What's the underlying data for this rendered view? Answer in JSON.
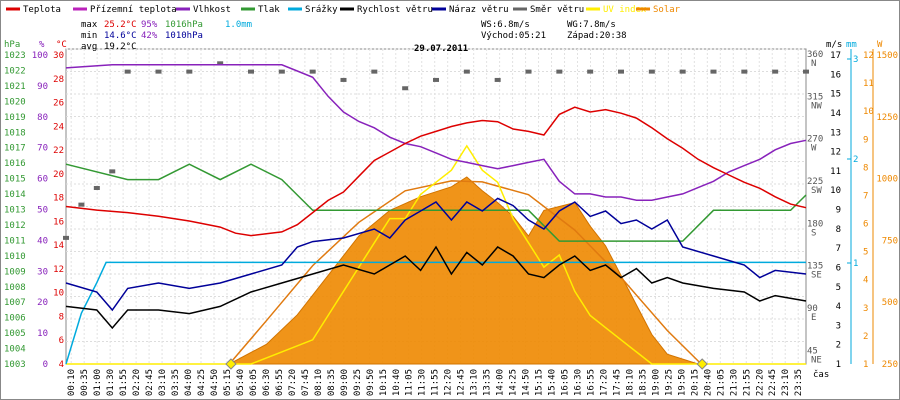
{
  "chart_data": {
    "type": "line",
    "title": "29.07.2011",
    "xlabel": "čas",
    "x_ticks": [
      "00:10",
      "00:35",
      "01:00",
      "01:30",
      "01:55",
      "02:20",
      "02:45",
      "03:10",
      "03:35",
      "04:00",
      "04:25",
      "04:50",
      "05:15",
      "05:40",
      "06:05",
      "06:30",
      "06:55",
      "07:20",
      "07:45",
      "08:10",
      "08:35",
      "09:00",
      "09:25",
      "09:50",
      "10:15",
      "10:40",
      "11:05",
      "11:30",
      "11:55",
      "12:20",
      "12:45",
      "13:10",
      "13:35",
      "14:00",
      "14:25",
      "14:50",
      "15:15",
      "15:40",
      "16:05",
      "16:30",
      "16:55",
      "17:20",
      "17:45",
      "18:10",
      "18:35",
      "19:00",
      "19:25",
      "19:50",
      "20:15",
      "20:40",
      "21:05",
      "21:30",
      "21:55",
      "22:20",
      "22:45",
      "23:10",
      "23:35"
    ],
    "legend": [
      {
        "label": "Teplota",
        "color": "#dd0000"
      },
      {
        "label": "Přízemní teplota",
        "color": "#bb22bb"
      },
      {
        "label": "Vlhkost",
        "color": "#8822bb"
      },
      {
        "label": "Tlak",
        "color": "#339933"
      },
      {
        "label": "Srážky",
        "color": "#00aadd"
      },
      {
        "label": "Rychlost větru",
        "color": "#000000"
      },
      {
        "label": "Náraz větru",
        "color": "#000099"
      },
      {
        "label": "Směr větru",
        "color": "#666666"
      },
      {
        "label": "UV index",
        "color": "#ffee00"
      },
      {
        "label": "Solar",
        "color": "#ee8800"
      }
    ],
    "stats": {
      "max_label": "max",
      "max_temp": "25.2°C",
      "max_hum": "95%",
      "max_press": "1016hPa",
      "rain": "1.0mm",
      "min_label": "min",
      "min_temp": "14.6°C",
      "min_hum": "42%",
      "min_press": "1010hPa",
      "avg_label": "avg",
      "avg_temp": "19.2°C",
      "ws": "WS:6.8m/s",
      "wg": "WG:7.8m/s",
      "sunrise": "Východ:05:21",
      "sunset": "Západ:20:38"
    },
    "axes": {
      "hpa": {
        "unit": "hPa",
        "ticks": [
          "1023",
          "1022",
          "1021",
          "1020",
          "1019",
          "1018",
          "1017",
          "1016",
          "1015",
          "1014",
          "1013",
          "1012",
          "1011",
          "1010",
          "1009",
          "1008",
          "1007",
          "1006",
          "1005",
          "1004",
          "1003"
        ]
      },
      "pct": {
        "unit": "%",
        "ticks": [
          "100",
          "90",
          "80",
          "70",
          "60",
          "50",
          "40",
          "30",
          "20",
          "10",
          "0"
        ]
      },
      "degc": {
        "unit": "°C",
        "ticks": [
          "30",
          "28",
          "26",
          "24",
          "22",
          "20",
          "18",
          "16",
          "14",
          "12",
          "10",
          "8",
          "6",
          "4"
        ]
      },
      "dir": {
        "ticks": [
          "360 N",
          "315 NW",
          "270 W",
          "225 SW",
          "180 S",
          "135 SE",
          "90 E",
          "45 NE"
        ]
      },
      "ms": {
        "unit": "m/s",
        "ticks": [
          "17",
          "16",
          "15",
          "14",
          "13",
          "12",
          "11",
          "10",
          "9",
          "8",
          "7",
          "6",
          "5",
          "4",
          "3",
          "2",
          "1"
        ]
      },
      "mm": {
        "unit": "mm",
        "ticks": [
          "3",
          "2",
          "1"
        ]
      },
      "uv": {
        "unit": "UV",
        "ticks": [
          "12",
          "11",
          "10",
          "9",
          "8",
          "7",
          "6",
          "5",
          "4",
          "3",
          "2",
          "1"
        ]
      },
      "w": {
        "unit": "W",
        "ticks": [
          "1500",
          "1250",
          "1000",
          "750",
          "500",
          "250"
        ]
      }
    },
    "series": {
      "temperature_C": [
        [
          0,
          17.0
        ],
        [
          1,
          16.7
        ],
        [
          2,
          16.5
        ],
        [
          3,
          16.2
        ],
        [
          4,
          15.8
        ],
        [
          5,
          15.3
        ],
        [
          5.5,
          14.8
        ],
        [
          6,
          14.6
        ],
        [
          7,
          14.9
        ],
        [
          7.5,
          15.5
        ],
        [
          8,
          16.5
        ],
        [
          8.5,
          17.5
        ],
        [
          9,
          18.2
        ],
        [
          9.5,
          19.5
        ],
        [
          10,
          20.8
        ],
        [
          10.5,
          21.5
        ],
        [
          11,
          22.2
        ],
        [
          11.5,
          22.8
        ],
        [
          12,
          23.2
        ],
        [
          12.5,
          23.6
        ],
        [
          13,
          23.9
        ],
        [
          13.5,
          24.1
        ],
        [
          14,
          24.0
        ],
        [
          14.5,
          23.4
        ],
        [
          15,
          23.2
        ],
        [
          15.5,
          22.9
        ],
        [
          16,
          24.6
        ],
        [
          16.5,
          25.2
        ],
        [
          17,
          24.8
        ],
        [
          17.5,
          25.0
        ],
        [
          18,
          24.7
        ],
        [
          18.5,
          24.3
        ],
        [
          19,
          23.5
        ],
        [
          19.5,
          22.6
        ],
        [
          20,
          21.8
        ],
        [
          20.5,
          20.9
        ],
        [
          21,
          20.2
        ],
        [
          21.5,
          19.6
        ],
        [
          22,
          19.0
        ],
        [
          22.5,
          18.5
        ],
        [
          23,
          17.8
        ],
        [
          23.5,
          17.2
        ],
        [
          24,
          16.9
        ]
      ],
      "humidity_pct": [
        [
          0,
          94
        ],
        [
          1.5,
          95
        ],
        [
          6,
          95
        ],
        [
          7,
          95
        ],
        [
          7.5,
          93
        ],
        [
          8,
          91
        ],
        [
          8.5,
          85
        ],
        [
          9,
          80
        ],
        [
          9.5,
          77
        ],
        [
          10,
          75
        ],
        [
          10.5,
          72
        ],
        [
          11,
          70
        ],
        [
          11.5,
          69
        ],
        [
          12,
          67
        ],
        [
          12.5,
          65
        ],
        [
          13,
          64
        ],
        [
          13.5,
          63
        ],
        [
          14,
          62
        ],
        [
          14.5,
          63
        ],
        [
          15,
          64
        ],
        [
          15.5,
          65
        ],
        [
          16,
          58
        ],
        [
          16.5,
          54
        ],
        [
          17,
          54
        ],
        [
          17.5,
          53
        ],
        [
          18,
          53
        ],
        [
          18.5,
          52
        ],
        [
          19,
          52
        ],
        [
          19.5,
          53
        ],
        [
          20,
          54
        ],
        [
          20.5,
          56
        ],
        [
          21,
          58
        ],
        [
          21.5,
          61
        ],
        [
          22,
          63
        ],
        [
          22.5,
          65
        ],
        [
          23,
          68
        ],
        [
          23.5,
          70
        ],
        [
          24,
          71
        ]
      ],
      "pressure_hPa": [
        [
          0,
          1016
        ],
        [
          2,
          1015
        ],
        [
          3,
          1015
        ],
        [
          4,
          1016
        ],
        [
          5,
          1015
        ],
        [
          6,
          1016
        ],
        [
          7,
          1015
        ],
        [
          7.5,
          1014
        ],
        [
          8,
          1013
        ],
        [
          9,
          1013
        ],
        [
          10,
          1013
        ],
        [
          11,
          1013
        ],
        [
          12,
          1013
        ],
        [
          13,
          1013
        ],
        [
          14,
          1013
        ],
        [
          15,
          1013
        ],
        [
          15.5,
          1012
        ],
        [
          16,
          1011
        ],
        [
          17,
          1011
        ],
        [
          18,
          1011
        ],
        [
          19,
          1011
        ],
        [
          20,
          1011
        ],
        [
          20.5,
          1012
        ],
        [
          21,
          1013
        ],
        [
          22,
          1013
        ],
        [
          23,
          1013
        ],
        [
          23.5,
          1013
        ],
        [
          24,
          1014
        ]
      ],
      "rain_mm": [
        [
          0,
          0
        ],
        [
          0.5,
          0.5
        ],
        [
          1,
          0.8
        ],
        [
          1.3,
          1.0
        ],
        [
          24,
          1.0
        ]
      ],
      "wind_ms": [
        [
          0,
          3.2
        ],
        [
          1,
          3.0
        ],
        [
          1.5,
          2.0
        ],
        [
          2,
          3.0
        ],
        [
          3,
          3.0
        ],
        [
          4,
          2.8
        ],
        [
          5,
          3.2
        ],
        [
          6,
          4.0
        ],
        [
          7,
          4.5
        ],
        [
          8,
          5.0
        ],
        [
          9,
          5.5
        ],
        [
          10,
          5.0
        ],
        [
          11,
          6.0
        ],
        [
          11.5,
          5.2
        ],
        [
          12,
          6.5
        ],
        [
          12.5,
          5.0
        ],
        [
          13,
          6.2
        ],
        [
          13.5,
          5.5
        ],
        [
          14,
          6.5
        ],
        [
          14.5,
          6.0
        ],
        [
          15,
          5.0
        ],
        [
          15.5,
          4.8
        ],
        [
          16,
          5.5
        ],
        [
          16.5,
          6.0
        ],
        [
          17,
          5.2
        ],
        [
          17.5,
          5.5
        ],
        [
          18,
          4.8
        ],
        [
          18.5,
          5.3
        ],
        [
          19,
          4.5
        ],
        [
          19.5,
          4.8
        ],
        [
          20,
          4.5
        ],
        [
          21,
          4.2
        ],
        [
          22,
          4.0
        ],
        [
          22.5,
          3.5
        ],
        [
          23,
          3.8
        ],
        [
          24,
          3.5
        ]
      ],
      "gust_ms": [
        [
          0,
          4.5
        ],
        [
          1,
          4.0
        ],
        [
          1.5,
          3.0
        ],
        [
          2,
          4.2
        ],
        [
          3,
          4.5
        ],
        [
          4,
          4.2
        ],
        [
          5,
          4.5
        ],
        [
          6,
          5.0
        ],
        [
          7,
          5.5
        ],
        [
          7.5,
          6.5
        ],
        [
          8,
          6.8
        ],
        [
          9,
          7.0
        ],
        [
          10,
          7.5
        ],
        [
          10.5,
          7.0
        ],
        [
          11,
          8.0
        ],
        [
          11.5,
          8.5
        ],
        [
          12,
          9.0
        ],
        [
          12.5,
          8.0
        ],
        [
          13,
          9.0
        ],
        [
          13.5,
          8.5
        ],
        [
          14,
          9.2
        ],
        [
          14.5,
          8.8
        ],
        [
          15,
          8.0
        ],
        [
          15.5,
          7.5
        ],
        [
          16,
          8.5
        ],
        [
          16.5,
          9.0
        ],
        [
          17,
          8.2
        ],
        [
          17.5,
          8.5
        ],
        [
          18,
          7.8
        ],
        [
          18.5,
          8.0
        ],
        [
          19,
          7.5
        ],
        [
          19.5,
          8.0
        ],
        [
          20,
          6.5
        ],
        [
          21,
          6.0
        ],
        [
          22,
          5.5
        ],
        [
          22.5,
          4.8
        ],
        [
          23,
          5.2
        ],
        [
          24,
          5.0
        ]
      ],
      "uv_index": [
        [
          0,
          0
        ],
        [
          6,
          0
        ],
        [
          7,
          0.5
        ],
        [
          8,
          1
        ],
        [
          8.5,
          2
        ],
        [
          9,
          3
        ],
        [
          9.5,
          4
        ],
        [
          10,
          5
        ],
        [
          10.5,
          6
        ],
        [
          11,
          6
        ],
        [
          11.5,
          7
        ],
        [
          12,
          7.5
        ],
        [
          12.5,
          8
        ],
        [
          13,
          9
        ],
        [
          13.5,
          8
        ],
        [
          14,
          7.5
        ],
        [
          14.5,
          6
        ],
        [
          15,
          5
        ],
        [
          15.5,
          4
        ],
        [
          16,
          4.5
        ],
        [
          16.5,
          3
        ],
        [
          17,
          2
        ],
        [
          17.5,
          1.5
        ],
        [
          18,
          1
        ],
        [
          18.5,
          0.5
        ],
        [
          19,
          0
        ],
        [
          24,
          0
        ]
      ],
      "solar_W": [
        [
          0,
          0
        ],
        [
          5.3,
          0
        ],
        [
          6.5,
          100
        ],
        [
          7.5,
          250
        ],
        [
          8.5,
          450
        ],
        [
          9.5,
          650
        ],
        [
          10.5,
          780
        ],
        [
          11.5,
          850
        ],
        [
          12.5,
          900
        ],
        [
          13,
          950
        ],
        [
          13.5,
          880
        ],
        [
          14,
          820
        ],
        [
          14.5,
          750
        ],
        [
          15,
          650
        ],
        [
          15.5,
          780
        ],
        [
          16,
          800
        ],
        [
          16.5,
          820
        ],
        [
          17,
          700
        ],
        [
          17.5,
          600
        ],
        [
          18,
          450
        ],
        [
          18.5,
          300
        ],
        [
          19,
          150
        ],
        [
          19.5,
          50
        ],
        [
          20.5,
          0
        ],
        [
          24,
          0
        ]
      ],
      "solar_clear_sky_W": [
        [
          5.3,
          0
        ],
        [
          6.5,
          220
        ],
        [
          8,
          500
        ],
        [
          9.5,
          720
        ],
        [
          11,
          880
        ],
        [
          12.5,
          930
        ],
        [
          13.5,
          925
        ],
        [
          15,
          860
        ],
        [
          16.5,
          680
        ],
        [
          18,
          440
        ],
        [
          19.5,
          170
        ],
        [
          20.6,
          0
        ]
      ],
      "wind_dir_deg": [
        [
          0,
          140
        ],
        [
          0.5,
          180
        ],
        [
          1,
          200
        ],
        [
          1.5,
          220
        ],
        [
          2,
          340
        ],
        [
          3,
          340
        ],
        [
          4,
          340
        ],
        [
          5,
          350
        ],
        [
          6,
          340
        ],
        [
          7,
          340
        ],
        [
          8,
          340
        ],
        [
          9,
          330
        ],
        [
          10,
          340
        ],
        [
          11,
          320
        ],
        [
          12,
          330
        ],
        [
          13,
          340
        ],
        [
          14,
          330
        ],
        [
          15,
          340
        ],
        [
          16,
          340
        ],
        [
          17,
          340
        ],
        [
          18,
          340
        ],
        [
          19,
          340
        ],
        [
          20,
          340
        ],
        [
          21,
          340
        ],
        [
          22,
          340
        ],
        [
          23,
          340
        ],
        [
          24,
          340
        ]
      ]
    }
  }
}
